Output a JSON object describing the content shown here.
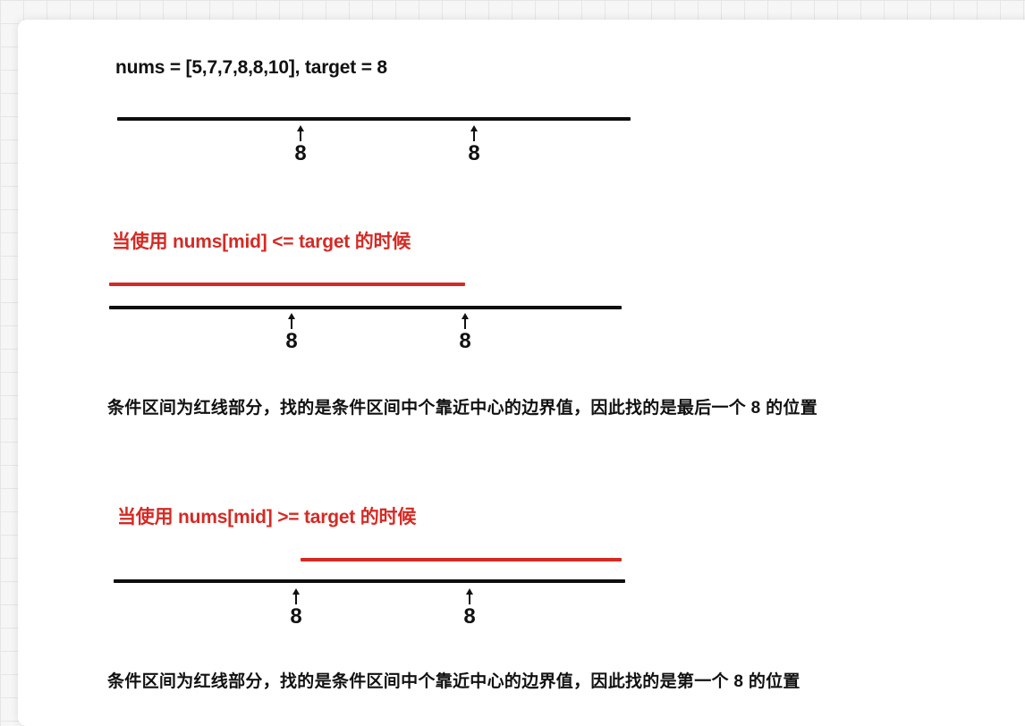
{
  "example": {
    "text": "nums = [5,7,7,8,8,10], target = 8",
    "markers": [
      "8",
      "8"
    ]
  },
  "case_le": {
    "title": "当使用 nums[mid] <= target 的时候",
    "markers": [
      "8",
      "8"
    ],
    "caption": "条件区间为红线部分，找的是条件区间中个靠近中心的边界值，因此找的是最后一个 8 的位置"
  },
  "case_ge": {
    "title": "当使用 nums[mid] >= target 的时候",
    "markers": [
      "8",
      "8"
    ],
    "caption": "条件区间为红线部分，找的是条件区间中个靠近中心的边界值，因此找的是第一个 8 的位置"
  },
  "colors": {
    "highlight": "#d42a24",
    "axis": "#0e0e0e",
    "text": "#111111"
  }
}
